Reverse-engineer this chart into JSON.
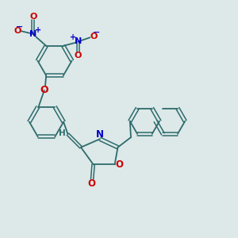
{
  "bg_color": "#dde8e8",
  "bond_color": "#2d6b6b",
  "N_color": "#0000cc",
  "O_color": "#cc0000",
  "figsize": [
    3.0,
    3.0
  ],
  "dpi": 100,
  "xlim": [
    0,
    10
  ],
  "ylim": [
    0,
    10
  ]
}
